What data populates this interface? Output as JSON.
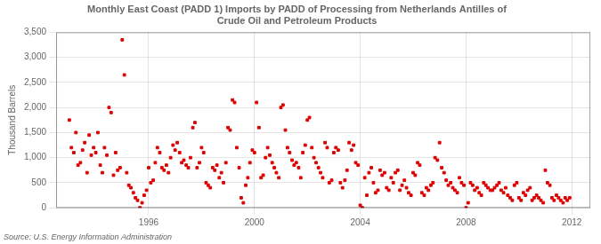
{
  "chart_data": {
    "type": "scatter",
    "title": "Monthly East Coast (PADD 1) Imports by PADD of Processing from Netherlands Antilles of\nCrude Oil and Petroleum Products",
    "ylabel": "Thousand Barrels",
    "source": "Source: U.S. Energy Information Administration",
    "color": "#DD0000",
    "marker": "square",
    "grid": true,
    "xlim": [
      1992.5,
      2012.7
    ],
    "xticks": [
      1996,
      2000,
      2004,
      2008,
      2012
    ],
    "ylim": [
      0,
      3500
    ],
    "yticks": [
      0,
      500,
      {
        "value": 1000,
        "label": "1,000"
      },
      {
        "value": 1500,
        "label": "1,500"
      },
      {
        "value": 2000,
        "label": "2,000"
      },
      {
        "value": 2500,
        "label": "2,500"
      },
      {
        "value": 3000,
        "label": "3,000"
      },
      {
        "value": 3500,
        "label": "3,500"
      }
    ],
    "x": [
      1993.0,
      1993.08,
      1993.17,
      1993.25,
      1993.33,
      1993.42,
      1993.5,
      1993.58,
      1993.67,
      1993.75,
      1993.83,
      1993.92,
      1994.0,
      1994.08,
      1994.17,
      1994.25,
      1994.33,
      1994.42,
      1994.5,
      1994.58,
      1994.67,
      1994.75,
      1994.83,
      1994.92,
      1995.0,
      1995.08,
      1995.17,
      1995.25,
      1995.33,
      1995.42,
      1995.5,
      1995.58,
      1995.67,
      1995.75,
      1995.83,
      1995.92,
      1996.0,
      1996.08,
      1996.17,
      1996.25,
      1996.33,
      1996.42,
      1996.5,
      1996.58,
      1996.67,
      1996.75,
      1996.83,
      1996.92,
      1997.0,
      1997.08,
      1997.17,
      1997.25,
      1997.33,
      1997.42,
      1997.5,
      1997.58,
      1997.67,
      1997.75,
      1997.83,
      1997.92,
      1998.0,
      1998.08,
      1998.17,
      1998.25,
      1998.33,
      1998.42,
      1998.5,
      1998.58,
      1998.67,
      1998.75,
      1998.83,
      1998.92,
      1999.0,
      1999.08,
      1999.17,
      1999.25,
      1999.33,
      1999.42,
      1999.5,
      1999.58,
      1999.67,
      1999.75,
      1999.83,
      1999.92,
      2000.0,
      2000.08,
      2000.17,
      2000.25,
      2000.33,
      2000.42,
      2000.5,
      2000.58,
      2000.67,
      2000.75,
      2000.83,
      2000.92,
      2001.0,
      2001.08,
      2001.17,
      2001.25,
      2001.33,
      2001.42,
      2001.5,
      2001.58,
      2001.67,
      2001.75,
      2001.83,
      2001.92,
      2002.0,
      2002.08,
      2002.17,
      2002.25,
      2002.33,
      2002.42,
      2002.5,
      2002.58,
      2002.67,
      2002.75,
      2002.83,
      2002.92,
      2003.0,
      2003.08,
      2003.17,
      2003.25,
      2003.33,
      2003.42,
      2003.5,
      2003.58,
      2003.67,
      2003.75,
      2003.83,
      2003.92,
      2004.0,
      2004.08,
      2004.17,
      2004.25,
      2004.33,
      2004.42,
      2004.5,
      2004.58,
      2004.67,
      2004.75,
      2004.83,
      2004.92,
      2005.0,
      2005.08,
      2005.17,
      2005.25,
      2005.33,
      2005.42,
      2005.5,
      2005.58,
      2005.67,
      2005.75,
      2005.83,
      2005.92,
      2006.0,
      2006.08,
      2006.17,
      2006.25,
      2006.33,
      2006.42,
      2006.5,
      2006.58,
      2006.67,
      2006.75,
      2006.83,
      2006.92,
      2007.0,
      2007.08,
      2007.17,
      2007.25,
      2007.33,
      2007.42,
      2007.5,
      2007.58,
      2007.67,
      2007.75,
      2007.83,
      2007.92,
      2008.0,
      2008.08,
      2008.17,
      2008.25,
      2008.33,
      2008.42,
      2008.5,
      2008.58,
      2008.67,
      2008.75,
      2008.83,
      2008.92,
      2009.0,
      2009.08,
      2009.17,
      2009.25,
      2009.33,
      2009.42,
      2009.5,
      2009.58,
      2009.67,
      2009.75,
      2009.83,
      2009.92,
      2010.0,
      2010.08,
      2010.17,
      2010.25,
      2010.33,
      2010.42,
      2010.5,
      2010.58,
      2010.67,
      2010.75,
      2010.83,
      2010.92,
      2011.0,
      2011.08,
      2011.17,
      2011.25,
      2011.33,
      2011.42,
      2011.5,
      2011.58,
      2011.67,
      2011.75,
      2011.83,
      2011.92
    ],
    "values": [
      1750,
      1200,
      1100,
      1500,
      850,
      900,
      1150,
      1300,
      700,
      1450,
      1050,
      1200,
      1100,
      1500,
      850,
      700,
      1200,
      1050,
      2000,
      1900,
      650,
      1100,
      750,
      800,
      3350,
      2650,
      700,
      450,
      400,
      300,
      200,
      150,
      0,
      100,
      250,
      350,
      800,
      500,
      550,
      900,
      1200,
      1100,
      800,
      750,
      850,
      700,
      1000,
      1250,
      1150,
      1300,
      1100,
      900,
      950,
      850,
      800,
      1000,
      1600,
      1700,
      800,
      900,
      1200,
      1100,
      500,
      450,
      400,
      800,
      750,
      850,
      600,
      700,
      500,
      900,
      1600,
      1550,
      2150,
      2100,
      1200,
      800,
      200,
      100,
      450,
      600,
      900,
      1150,
      1100,
      2100,
      1600,
      600,
      650,
      1000,
      1200,
      1050,
      900,
      800,
      700,
      600,
      2000,
      2050,
      1550,
      1200,
      1100,
      950,
      850,
      900,
      800,
      600,
      1100,
      1250,
      1750,
      1800,
      1200,
      1000,
      900,
      800,
      700,
      600,
      1300,
      1200,
      500,
      550,
      1100,
      1200,
      1150,
      500,
      400,
      550,
      750,
      1300,
      1150,
      1250,
      900,
      850,
      50,
      0,
      600,
      250,
      700,
      800,
      500,
      300,
      350,
      750,
      650,
      700,
      400,
      350,
      600,
      500,
      700,
      750,
      350,
      450,
      550,
      400,
      300,
      250,
      700,
      650,
      900,
      850,
      300,
      250,
      400,
      350,
      450,
      500,
      1000,
      950,
      1300,
      800,
      700,
      550,
      450,
      500,
      400,
      350,
      300,
      600,
      500,
      450,
      0,
      100,
      500,
      450,
      350,
      400,
      300,
      250,
      500,
      450,
      400,
      350,
      350,
      400,
      450,
      500,
      350,
      300,
      400,
      250,
      200,
      150,
      450,
      500,
      200,
      150,
      300,
      250,
      350,
      400,
      150,
      200,
      250,
      200,
      150,
      100,
      750,
      500,
      450,
      200,
      150,
      250,
      200,
      150,
      100,
      200,
      150,
      200
    ]
  }
}
